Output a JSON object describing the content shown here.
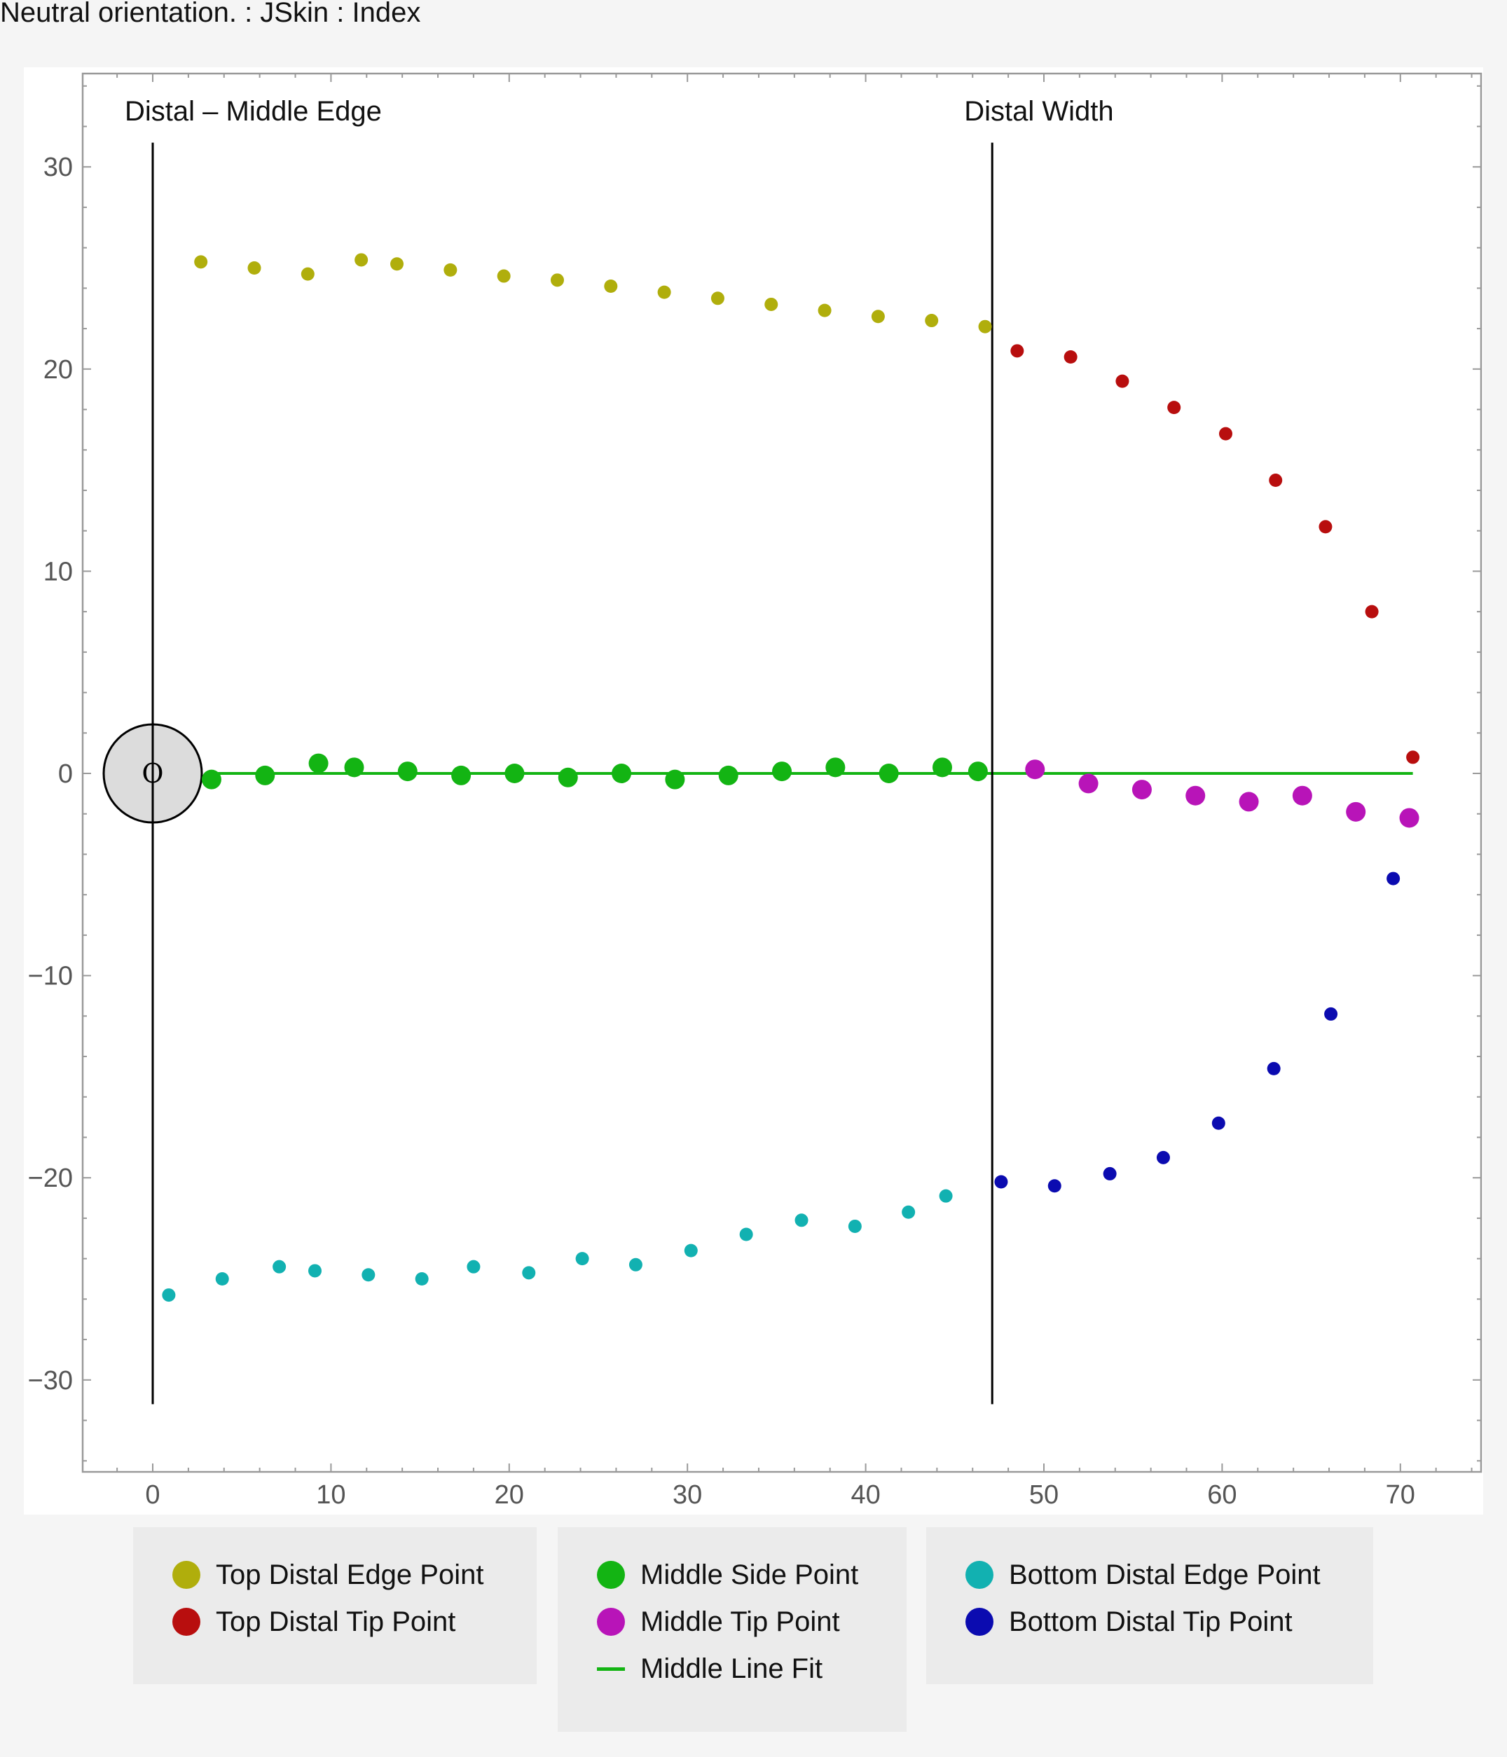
{
  "window": {
    "title": "Neutral orientation. : JSkin : Index"
  },
  "chart_data": {
    "type": "scatter",
    "xlim": [
      -4,
      74.5
    ],
    "ylim": [
      -34.5,
      34.5
    ],
    "x_ticks": [
      0,
      10,
      20,
      30,
      40,
      50,
      60,
      70
    ],
    "y_ticks": [
      -30,
      -20,
      -10,
      0,
      10,
      20,
      30
    ],
    "grid": false,
    "legend_position": "bottom",
    "origin_marker": {
      "x": 0,
      "y": 0,
      "label": "O",
      "radius": 2.8,
      "fill": "#dcdcdc"
    },
    "vertical_lines": [
      {
        "x": 0,
        "y_range": [
          -31.2,
          31.2
        ],
        "label": "Distal – Middle Edge"
      },
      {
        "x": 47.1,
        "y_range": [
          -31.2,
          31.2
        ],
        "label": "Distal Width"
      }
    ],
    "line_fit": {
      "name": "Middle Line Fit",
      "color": "#13b413",
      "x_range": [
        3,
        70.7
      ],
      "y": 0
    },
    "series": [
      {
        "name": "Top Distal Edge Point",
        "color": "#b0ae0c",
        "size": 7,
        "x": [
          2.7,
          5.7,
          8.7,
          11.7,
          13.7,
          16.7,
          19.7,
          22.7,
          25.7,
          28.7,
          31.7,
          34.7,
          37.7,
          40.7,
          43.7,
          46.7
        ],
        "y": [
          25.3,
          25.0,
          24.7,
          25.4,
          25.2,
          24.9,
          24.6,
          24.4,
          24.1,
          23.8,
          23.5,
          23.2,
          22.9,
          22.6,
          22.4,
          22.1
        ]
      },
      {
        "name": "Top Distal Tip Point",
        "color": "#b80e0e",
        "size": 7,
        "x": [
          48.5,
          51.5,
          54.4,
          57.3,
          60.2,
          63.0,
          65.8,
          68.4,
          70.7
        ],
        "y": [
          20.9,
          20.6,
          19.4,
          18.1,
          16.8,
          14.5,
          12.2,
          8.0,
          0.8
        ]
      },
      {
        "name": "Middle Side Point",
        "color": "#13b413",
        "size": 12,
        "x": [
          3.3,
          6.3,
          9.3,
          11.3,
          14.3,
          17.3,
          20.3,
          23.3,
          26.3,
          29.3,
          32.3,
          35.3,
          38.3,
          41.3,
          44.3,
          46.3
        ],
        "y": [
          -0.3,
          -0.1,
          0.5,
          0.3,
          0.1,
          -0.1,
          0.0,
          -0.2,
          0.0,
          -0.3,
          -0.1,
          0.1,
          0.3,
          0.0,
          0.3,
          0.1
        ]
      },
      {
        "name": "Middle Tip Point",
        "color": "#b814b8",
        "size": 12,
        "x": [
          49.5,
          52.5,
          55.5,
          58.5,
          61.5,
          64.5,
          67.5,
          70.5
        ],
        "y": [
          0.2,
          -0.5,
          -0.8,
          -1.1,
          -1.4,
          -1.1,
          -1.9,
          -2.2
        ]
      },
      {
        "name": "Bottom Distal Edge Point",
        "color": "#12b1b1",
        "size": 7,
        "x": [
          0.9,
          3.9,
          7.1,
          9.1,
          12.1,
          15.1,
          18.0,
          21.1,
          24.1,
          27.1,
          30.2,
          33.3,
          36.4,
          39.4,
          42.4,
          44.5
        ],
        "y": [
          -25.8,
          -25.0,
          -24.4,
          -24.6,
          -24.8,
          -25.0,
          -24.4,
          -24.7,
          -24.0,
          -24.3,
          -23.6,
          -22.8,
          -22.1,
          -22.4,
          -21.7,
          -20.9
        ]
      },
      {
        "name": "Bottom Distal Tip Point",
        "color": "#0b0bb0",
        "size": 7,
        "x": [
          47.6,
          50.6,
          53.7,
          56.7,
          59.8,
          62.9,
          66.1,
          69.6
        ],
        "y": [
          -20.2,
          -20.4,
          -19.8,
          -19.0,
          -17.3,
          -14.6,
          -11.9,
          -5.2
        ]
      }
    ]
  },
  "legend": {
    "groups": [
      {
        "items": [
          {
            "label": "Top Distal Edge Point",
            "color": "#b0ae0c",
            "kind": "dot"
          },
          {
            "label": "Top Distal Tip Point",
            "color": "#b80e0e",
            "kind": "dot"
          }
        ]
      },
      {
        "items": [
          {
            "label": "Middle Side Point",
            "color": "#13b413",
            "kind": "dot"
          },
          {
            "label": "Middle Tip Point",
            "color": "#b814b8",
            "kind": "dot"
          },
          {
            "label": "Middle Line Fit",
            "color": "#13b413",
            "kind": "line"
          }
        ]
      },
      {
        "items": [
          {
            "label": "Bottom Distal Edge Point",
            "color": "#12b1b1",
            "kind": "dot"
          },
          {
            "label": "Bottom Distal Tip Point",
            "color": "#0b0bb0",
            "kind": "dot"
          }
        ]
      }
    ]
  }
}
